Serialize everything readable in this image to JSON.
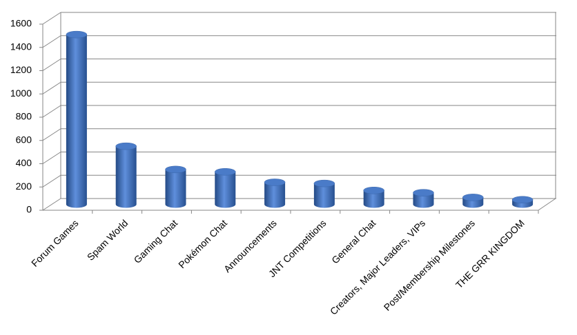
{
  "chart_data": {
    "type": "bar",
    "categories": [
      "Forum Games",
      "Spam World",
      "Gaming Chat",
      "Pokémon Chat",
      "Announcements",
      "JNT Competitions",
      "General Chat",
      "Creators, Major Leaders, VIPs",
      "Post/Membership Milestones",
      "THE GRR KINGDOM"
    ],
    "values": [
      1460,
      500,
      300,
      280,
      190,
      180,
      120,
      100,
      60,
      40
    ],
    "color": "#4a7bc8",
    "ylim": [
      0,
      1600
    ],
    "yticks": [
      0,
      200,
      400,
      600,
      800,
      1000,
      1200,
      1400,
      1600
    ],
    "grid": true
  }
}
